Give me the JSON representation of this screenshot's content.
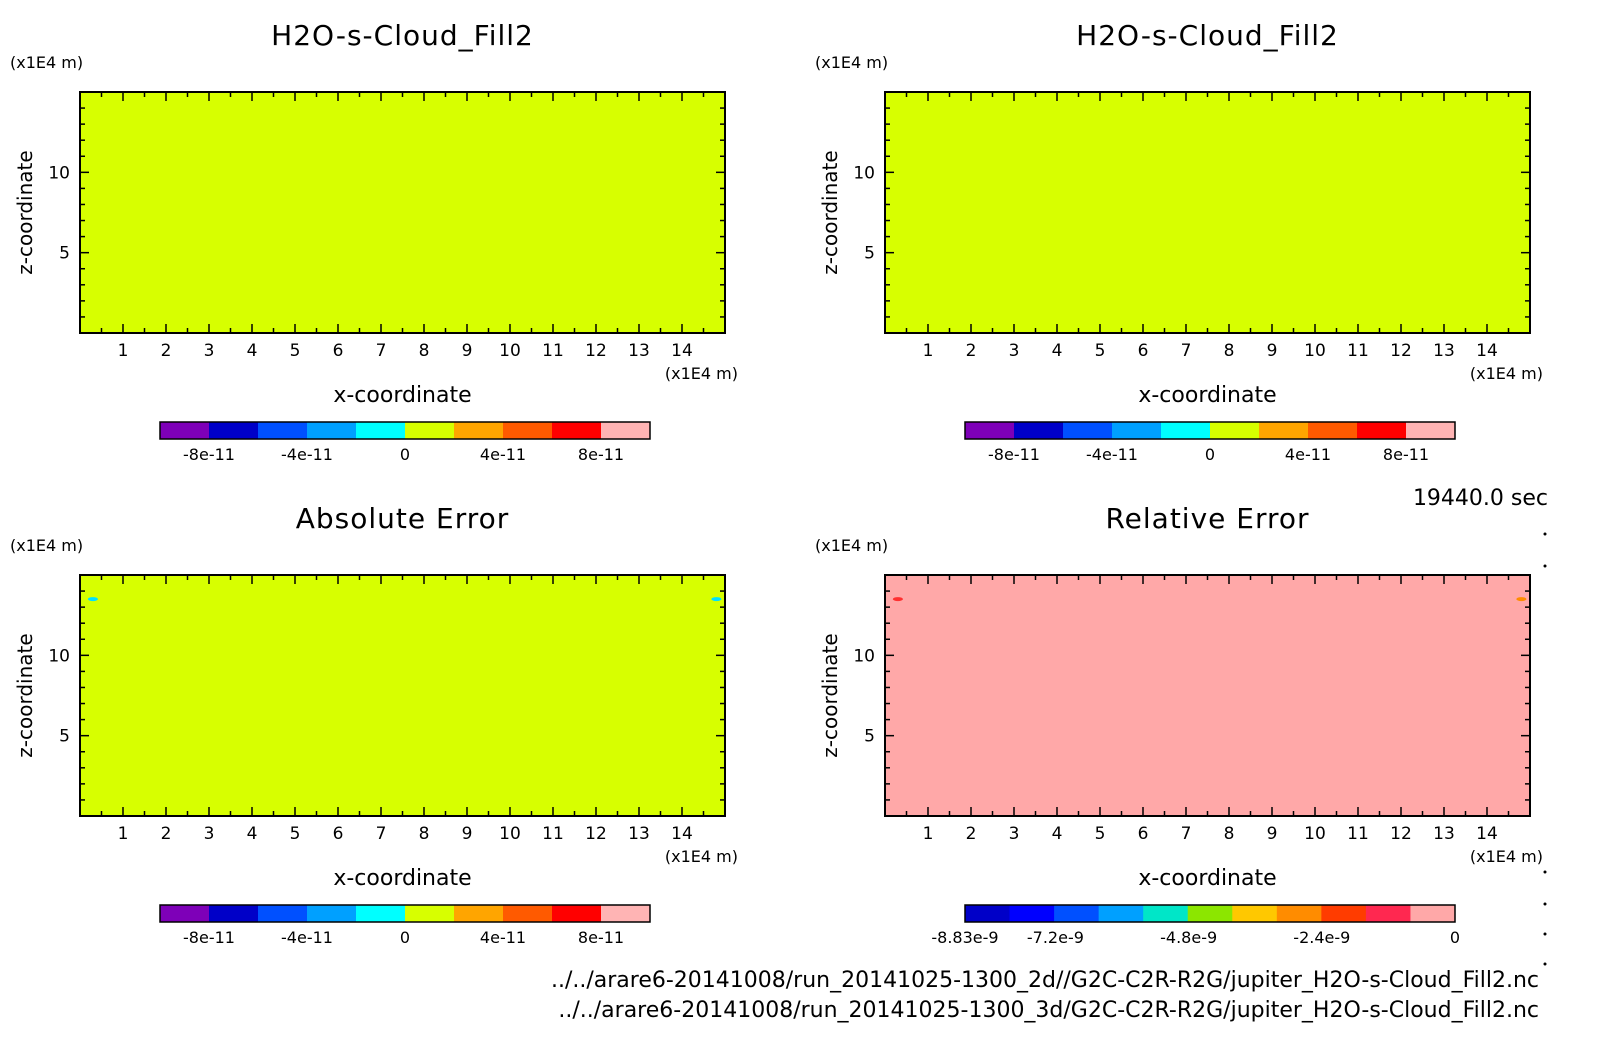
{
  "chart_data": [
    {
      "type": "heatmap",
      "title": "H2O-s-Cloud_Fill2",
      "xlabel": "x-coordinate",
      "ylabel": "z-coordinate",
      "x_unit": "(x1E4 m)",
      "z_unit": "(x1E4 m)",
      "xlim": [
        0,
        15
      ],
      "zlim": [
        0,
        15
      ],
      "x_ticks": [
        1,
        2,
        3,
        4,
        5,
        6,
        7,
        8,
        9,
        10,
        11,
        12,
        13,
        14
      ],
      "z_ticks": [
        5,
        10
      ],
      "fill_value": "0 to 4e-11 band (uniform)",
      "fill_color": "#d7ff00",
      "colorbar": {
        "colors": [
          "#7e00b8",
          "#0000c8",
          "#0050ff",
          "#00a0ff",
          "#00ffff",
          "#d7ff00",
          "#ffa500",
          "#ff5a00",
          "#ff0000",
          "#ffb4b4"
        ],
        "tick_labels": [
          "-8e-11",
          "-4e-11",
          "0",
          "4e-11",
          "8e-11"
        ],
        "tick_at_boundary": [
          1,
          3,
          5,
          7,
          9
        ]
      }
    },
    {
      "type": "heatmap",
      "title": "H2O-s-Cloud_Fill2",
      "xlabel": "x-coordinate",
      "ylabel": "z-coordinate",
      "x_unit": "(x1E4 m)",
      "z_unit": "(x1E4 m)",
      "xlim": [
        0,
        15
      ],
      "zlim": [
        0,
        15
      ],
      "x_ticks": [
        1,
        2,
        3,
        4,
        5,
        6,
        7,
        8,
        9,
        10,
        11,
        12,
        13,
        14
      ],
      "z_ticks": [
        5,
        10
      ],
      "fill_value": "0 to 4e-11 band (uniform)",
      "fill_color": "#d7ff00",
      "colorbar": {
        "colors": [
          "#7e00b8",
          "#0000c8",
          "#0050ff",
          "#00a0ff",
          "#00ffff",
          "#d7ff00",
          "#ffa500",
          "#ff5a00",
          "#ff0000",
          "#ffb4b4"
        ],
        "tick_labels": [
          "-8e-11",
          "-4e-11",
          "0",
          "4e-11",
          "8e-11"
        ],
        "tick_at_boundary": [
          1,
          3,
          5,
          7,
          9
        ]
      }
    },
    {
      "type": "heatmap",
      "title": "Absolute Error",
      "xlabel": "x-coordinate",
      "ylabel": "z-coordinate",
      "x_unit": "(x1E4 m)",
      "z_unit": "(x1E4 m)",
      "xlim": [
        0,
        15
      ],
      "zlim": [
        0,
        15
      ],
      "x_ticks": [
        1,
        2,
        3,
        4,
        5,
        6,
        7,
        8,
        9,
        10,
        11,
        12,
        13,
        14
      ],
      "z_ticks": [
        5,
        10
      ],
      "fill_value": "0 to 4e-11 band (uniform)",
      "fill_color": "#d7ff00",
      "spots": [
        {
          "x": 0.3,
          "z": 13.5,
          "color": "#00e0ff"
        },
        {
          "x": 14.8,
          "z": 13.5,
          "color": "#00e0ff"
        }
      ],
      "colorbar": {
        "colors": [
          "#7e00b8",
          "#0000c8",
          "#0050ff",
          "#00a0ff",
          "#00ffff",
          "#d7ff00",
          "#ffa500",
          "#ff5a00",
          "#ff0000",
          "#ffb4b4"
        ],
        "tick_labels": [
          "-8e-11",
          "-4e-11",
          "0",
          "4e-11",
          "8e-11"
        ],
        "tick_at_boundary": [
          1,
          3,
          5,
          7,
          9
        ]
      }
    },
    {
      "type": "heatmap",
      "title": "Relative Error",
      "xlabel": "x-coordinate",
      "ylabel": "z-coordinate",
      "x_unit": "(x1E4 m)",
      "z_unit": "(x1E4 m)",
      "xlim": [
        0,
        15
      ],
      "zlim": [
        0,
        15
      ],
      "x_ticks": [
        1,
        2,
        3,
        4,
        5,
        6,
        7,
        8,
        9,
        10,
        11,
        12,
        13,
        14
      ],
      "z_ticks": [
        5,
        10
      ],
      "fill_value": "-8.83e-10 to 0 band (uniform)",
      "fill_color": "#ffa8a8",
      "spots": [
        {
          "x": 0.3,
          "z": 13.5,
          "color": "#ff3030"
        },
        {
          "x": 14.8,
          "z": 13.5,
          "color": "#ff8c00"
        }
      ],
      "colorbar": {
        "colors": [
          "#0000c8",
          "#0000ff",
          "#0050ff",
          "#00a0ff",
          "#00e6c8",
          "#8ce600",
          "#ffc800",
          "#ff8c00",
          "#ff3c00",
          "#ff2850",
          "#ffa8a8"
        ],
        "tick_labels": [
          "-8.83e-9",
          "-7.2e-9",
          "-4.8e-9",
          "-2.4e-9",
          "0"
        ],
        "tick_at_fraction": [
          0.0,
          0.1845,
          0.4564,
          0.7282,
          1.0
        ]
      }
    }
  ],
  "time_label": "19440.0 sec",
  "footer": {
    "line1": "../../arare6-20141008/run_20141025-1300_2d//G2C-C2R-R2G/jupiter_H2O-s-Cloud_Fill2.nc",
    "line2": "../../arare6-20141008/run_20141025-1300_3d/G2C-C2R-R2G/jupiter_H2O-s-Cloud_Fill2.nc"
  }
}
